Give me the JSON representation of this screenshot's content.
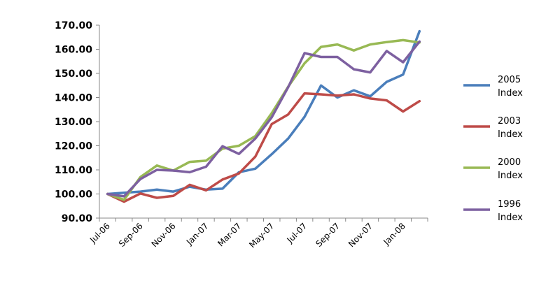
{
  "chart_data": {
    "type": "line",
    "ylim": [
      90,
      170
    ],
    "y_ticks": [
      90,
      100,
      110,
      120,
      130,
      140,
      150,
      160,
      170
    ],
    "y_tick_labels": [
      "90.00",
      "100.00",
      "110.00",
      "120.00",
      "130.00",
      "140.00",
      "150.00",
      "160.00",
      "170.00"
    ],
    "x": [
      "Jul-06",
      "Aug-06",
      "Sep-06",
      "Oct-06",
      "Nov-06",
      "Dec-06",
      "Jan-07",
      "Feb-07",
      "Mar-07",
      "Apr-07",
      "May-07",
      "Jun-07",
      "Jul-07",
      "Aug-07",
      "Sep-07",
      "Oct-07",
      "Nov-07",
      "Dec-07",
      "Jan-08",
      "Feb-08"
    ],
    "x_tick_labels": [
      "Jul-06",
      "Sep-06",
      "Nov-06",
      "Jan-07",
      "Mar-07",
      "May-07",
      "Jul-07",
      "Sep-07",
      "Nov-07",
      "Jan-08"
    ],
    "grid": false,
    "legend_position": "right",
    "series": [
      {
        "name": "2005 Index",
        "color": "#4a7ebb",
        "values": [
          100,
          100.5,
          101,
          101.8,
          101,
          103,
          101.8,
          102.2,
          109,
          110.5,
          116.5,
          123,
          132,
          145,
          140,
          143,
          140.5,
          146.5,
          149.5,
          167.5
        ]
      },
      {
        "name": "2003 Index",
        "color": "#be4b48",
        "values": [
          100,
          96.8,
          100.2,
          98.4,
          99.2,
          103.8,
          101.5,
          106,
          108.5,
          115.5,
          129,
          133,
          141.7,
          141.3,
          140.8,
          141.3,
          139.6,
          138.8,
          134.2,
          138.5
        ]
      },
      {
        "name": "2000 Index",
        "color": "#98b954",
        "values": [
          100,
          97.6,
          107,
          111.8,
          109.7,
          113.3,
          113.8,
          118.8,
          120,
          124,
          133.5,
          144.5,
          154.2,
          161,
          162,
          159.5,
          162,
          163,
          163.8,
          162.8
        ]
      },
      {
        "name": "1996 Index",
        "color": "#7d60a0",
        "values": [
          100,
          99,
          106.2,
          110,
          109.7,
          109,
          111.3,
          119.8,
          116.6,
          123,
          131.8,
          144.3,
          158.4,
          156.8,
          156.8,
          151.7,
          150.4,
          159.3,
          154.6,
          163.2
        ]
      }
    ]
  }
}
